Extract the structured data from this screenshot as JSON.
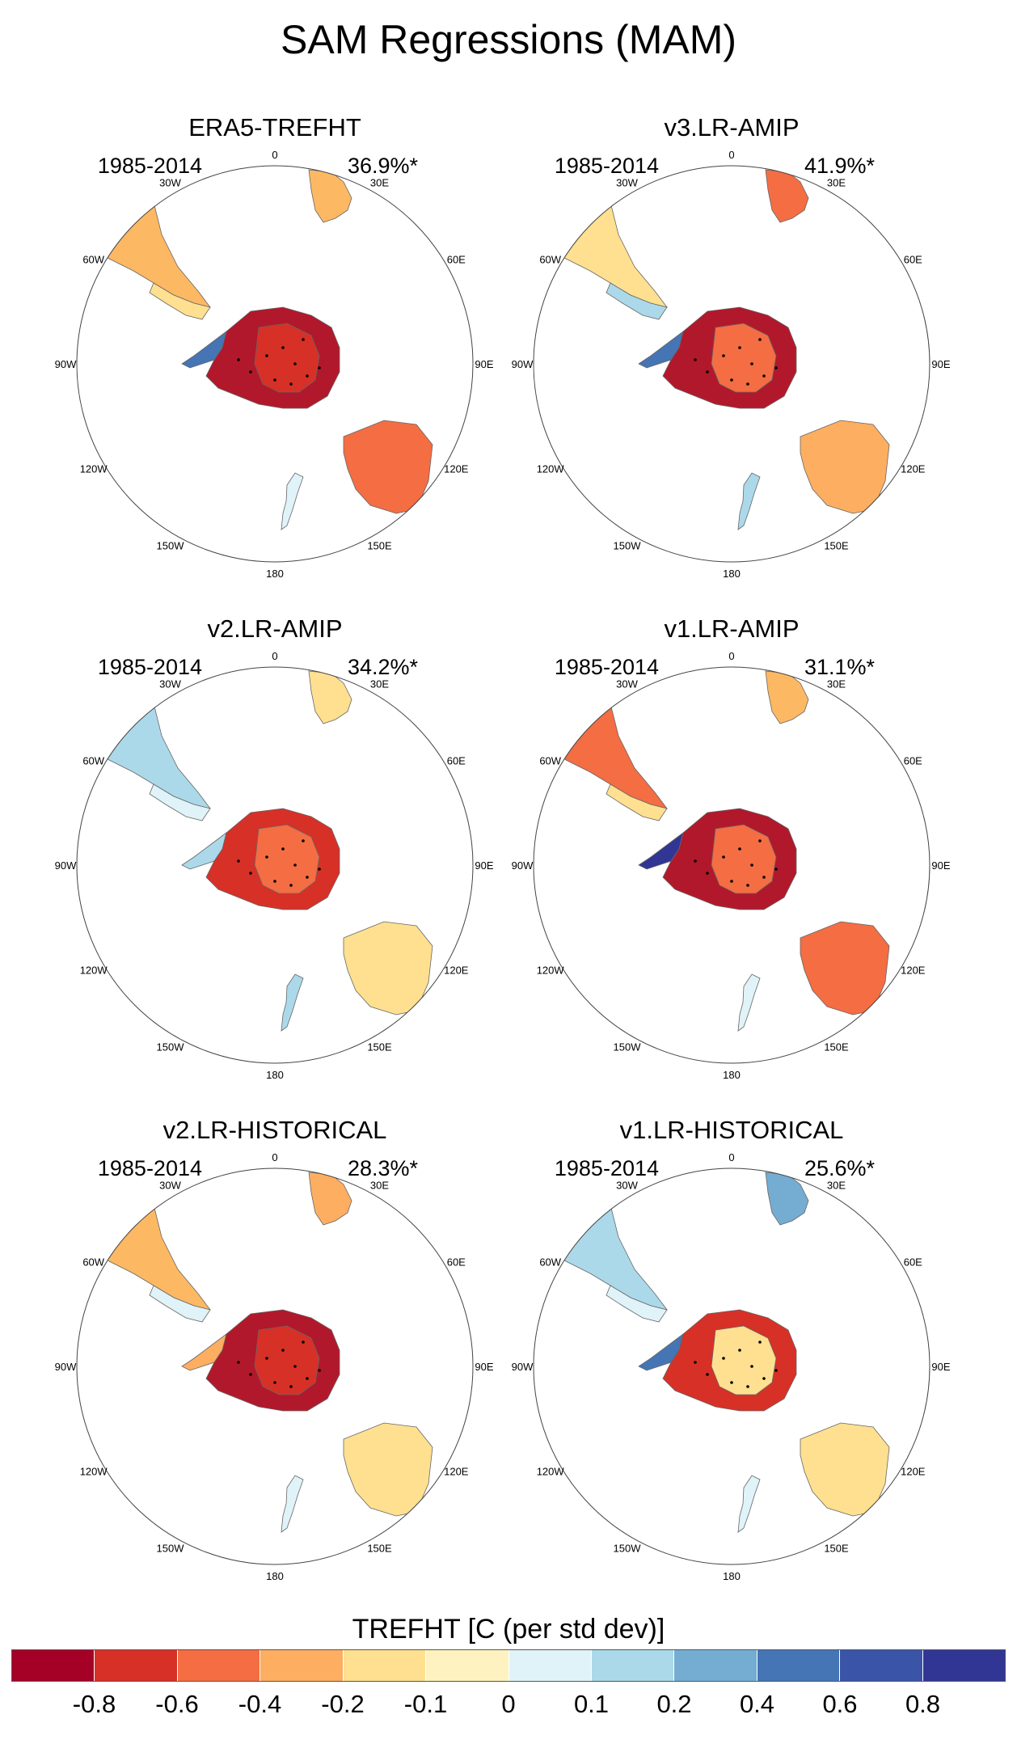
{
  "title": "SAM Regressions (MAM)",
  "panels": [
    {
      "name": "ERA5-TREFHT",
      "period": "1985-2014",
      "pct": "36.9%*",
      "fields": {
        "antarctica": "#b2182b",
        "east_antarctica": "#d73027",
        "peninsula": "#4575b4",
        "south_america": "#fdb863",
        "patagonia": "#fee090",
        "africa": "#fdb863",
        "australia": "#f46d43",
        "new_zealand": "#e0f3f8"
      }
    },
    {
      "name": "v3.LR-AMIP",
      "period": "1985-2014",
      "pct": "41.9%*",
      "fields": {
        "antarctica": "#b2182b",
        "east_antarctica": "#f46d43",
        "peninsula": "#4575b4",
        "south_america": "#fee090",
        "patagonia": "#abd9e9",
        "africa": "#f46d43",
        "australia": "#fdae61",
        "new_zealand": "#abd9e9"
      }
    },
    {
      "name": "v2.LR-AMIP",
      "period": "1985-2014",
      "pct": "34.2%*",
      "fields": {
        "antarctica": "#d73027",
        "east_antarctica": "#f46d43",
        "peninsula": "#abd9e9",
        "south_america": "#abd9e9",
        "patagonia": "#e0f3f8",
        "africa": "#fee090",
        "australia": "#fee090",
        "new_zealand": "#abd9e9"
      }
    },
    {
      "name": "v1.LR-AMIP",
      "period": "1985-2014",
      "pct": "31.1%*",
      "fields": {
        "antarctica": "#b2182b",
        "east_antarctica": "#f46d43",
        "peninsula": "#313695",
        "south_america": "#f46d43",
        "patagonia": "#fee090",
        "africa": "#fdb863",
        "australia": "#f46d43",
        "new_zealand": "#e0f3f8"
      }
    },
    {
      "name": "v2.LR-HISTORICAL",
      "period": "1985-2014",
      "pct": "28.3%*",
      "fields": {
        "antarctica": "#b2182b",
        "east_antarctica": "#d73027",
        "peninsula": "#fdae61",
        "south_america": "#fdb863",
        "patagonia": "#e0f3f8",
        "africa": "#fdae61",
        "australia": "#fee090",
        "new_zealand": "#e0f3f8"
      }
    },
    {
      "name": "v1.LR-HISTORICAL",
      "period": "1985-2014",
      "pct": "25.6%*",
      "fields": {
        "antarctica": "#d73027",
        "east_antarctica": "#fee090",
        "peninsula": "#4575b4",
        "south_america": "#abd9e9",
        "patagonia": "#e0f3f8",
        "africa": "#74add1",
        "australia": "#fee090",
        "new_zealand": "#e0f3f8"
      }
    }
  ],
  "longitude_labels": [
    "0",
    "30E",
    "60E",
    "90E",
    "120E",
    "150E",
    "180",
    "150W",
    "120W",
    "90W",
    "60W",
    "30W"
  ],
  "legend": {
    "title": "TREFHT [C (per std dev)]",
    "colors": [
      "#a50026",
      "#d73027",
      "#f46d43",
      "#fdae61",
      "#fee090",
      "#fef3c0",
      "#e0f3f8",
      "#abd9e9",
      "#74add1",
      "#4575b4",
      "#3a55a8",
      "#313695"
    ],
    "ticks": [
      "-0.8",
      "-0.6",
      "-0.4",
      "-0.2",
      "-0.1",
      "0",
      "0.1",
      "0.2",
      "0.4",
      "0.6",
      "0.8"
    ]
  }
}
